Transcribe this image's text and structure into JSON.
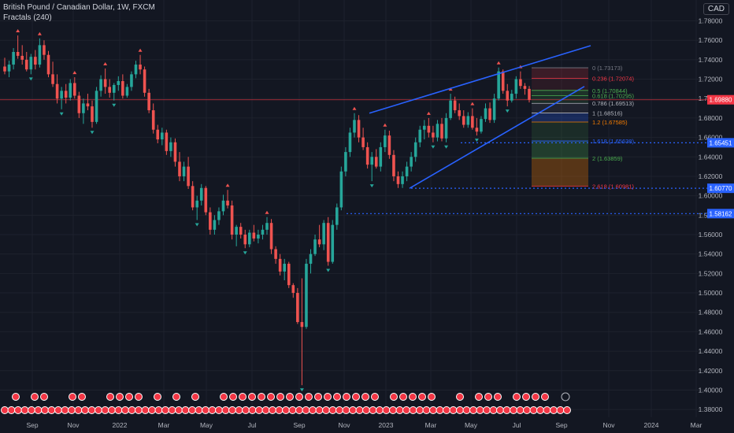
{
  "header": {
    "title": "British Pound / Canadian Dollar, 1W, FXCM",
    "indicator": "Fractals (240)",
    "currency": "CAD"
  },
  "colors": {
    "background": "#131722",
    "up": "#26a69a",
    "down": "#ef5350",
    "trendline": "#2962ff",
    "price_line": "#f23645",
    "level_line": "#2962ff"
  },
  "chart_data": {
    "type": "candlestick",
    "symbol": "GBPCAD",
    "interval": "1W",
    "yaxis": {
      "ticks": [
        "1.78000",
        "1.76000",
        "1.74000",
        "1.72000",
        "1.70000",
        "1.68000",
        "1.66000",
        "1.64000",
        "1.62000",
        "1.60000",
        "1.58000",
        "1.56000",
        "1.54000",
        "1.52000",
        "1.50000",
        "1.48000",
        "1.46000",
        "1.44000",
        "1.42000",
        "1.40000",
        "1.38000"
      ],
      "range": [
        1.372,
        1.795
      ]
    },
    "xaxis": {
      "ticks": [
        "Sep",
        "Nov",
        "2022",
        "Mar",
        "May",
        "Jul",
        "Sep",
        "Nov",
        "2023",
        "Mar",
        "May",
        "Jul",
        "Sep",
        "Nov",
        "2024",
        "Mar"
      ]
    },
    "price_labels": [
      {
        "label": "1.69880",
        "value": 1.6988,
        "color": "#f23645"
      },
      {
        "label": "1.65451",
        "value": 1.65451,
        "color": "#2962ff"
      },
      {
        "label": "1.60770",
        "value": 1.6077,
        "color": "#2962ff"
      },
      {
        "label": "1.58162",
        "value": 1.58162,
        "color": "#2962ff"
      }
    ],
    "fib_levels": [
      {
        "label": "0 (1.73173)",
        "value": 1.73173,
        "color": "#787b86"
      },
      {
        "label": "0.236 (1.72074)",
        "value": 1.72074,
        "color": "#f23645"
      },
      {
        "label": "0.5 (1.70844)",
        "value": 1.70844,
        "color": "#4caf50"
      },
      {
        "label": "0.618 (1.70295)",
        "value": 1.70295,
        "color": "#4caf50"
      },
      {
        "label": "0.786 (1.69513)",
        "value": 1.69513,
        "color": "#b2b5be"
      },
      {
        "label": "1 (1.68516)",
        "value": 1.68516,
        "color": "#b2b5be"
      },
      {
        "label": "1.2 (1.67585)",
        "value": 1.67585,
        "color": "#f57c00"
      },
      {
        "label": "1.618 (1.65638)",
        "value": 1.65638,
        "color": "#2962ff"
      },
      {
        "label": "2 (1.63859)",
        "value": 1.63859,
        "color": "#4caf50"
      },
      {
        "label": "2.618 (1.60981)",
        "value": 1.60981,
        "color": "#f23645"
      }
    ],
    "candles": [
      [
        1.733,
        1.742,
        1.725,
        1.728
      ],
      [
        1.728,
        1.739,
        1.722,
        1.735
      ],
      [
        1.735,
        1.752,
        1.73,
        1.748
      ],
      [
        1.748,
        1.765,
        1.741,
        1.744
      ],
      [
        1.744,
        1.755,
        1.735,
        1.74
      ],
      [
        1.74,
        1.748,
        1.728,
        1.73
      ],
      [
        1.73,
        1.746,
        1.725,
        1.743
      ],
      [
        1.743,
        1.75,
        1.73,
        1.735
      ],
      [
        1.735,
        1.762,
        1.732,
        1.755
      ],
      [
        1.755,
        1.76,
        1.74,
        1.745
      ],
      [
        1.745,
        1.749,
        1.722,
        1.725
      ],
      [
        1.725,
        1.738,
        1.712,
        1.715
      ],
      [
        1.715,
        1.725,
        1.695,
        1.7
      ],
      [
        1.7,
        1.712,
        1.689,
        1.708
      ],
      [
        1.708,
        1.715,
        1.695,
        1.701
      ],
      [
        1.701,
        1.72,
        1.698,
        1.716
      ],
      [
        1.716,
        1.722,
        1.7,
        1.703
      ],
      [
        1.703,
        1.707,
        1.68,
        1.685
      ],
      [
        1.685,
        1.7,
        1.674,
        1.695
      ],
      [
        1.695,
        1.705,
        1.688,
        1.692
      ],
      [
        1.692,
        1.698,
        1.67,
        1.676
      ],
      [
        1.676,
        1.712,
        1.674,
        1.708
      ],
      [
        1.708,
        1.724,
        1.702,
        1.72
      ],
      [
        1.72,
        1.731,
        1.705,
        1.712
      ],
      [
        1.712,
        1.72,
        1.701,
        1.706
      ],
      [
        1.706,
        1.716,
        1.698,
        1.714
      ],
      [
        1.714,
        1.723,
        1.708,
        1.718
      ],
      [
        1.718,
        1.725,
        1.7,
        1.703
      ],
      [
        1.703,
        1.715,
        1.701,
        1.712
      ],
      [
        1.712,
        1.728,
        1.708,
        1.725
      ],
      [
        1.725,
        1.739,
        1.721,
        1.735
      ],
      [
        1.735,
        1.745,
        1.725,
        1.73
      ],
      [
        1.73,
        1.733,
        1.702,
        1.706
      ],
      [
        1.706,
        1.71,
        1.685,
        1.688
      ],
      [
        1.688,
        1.695,
        1.664,
        1.668
      ],
      [
        1.668,
        1.673,
        1.654,
        1.658
      ],
      [
        1.658,
        1.67,
        1.652,
        1.665
      ],
      [
        1.665,
        1.668,
        1.642,
        1.646
      ],
      [
        1.646,
        1.66,
        1.64,
        1.655
      ],
      [
        1.655,
        1.659,
        1.63,
        1.635
      ],
      [
        1.635,
        1.645,
        1.615,
        1.62
      ],
      [
        1.62,
        1.635,
        1.615,
        1.63
      ],
      [
        1.63,
        1.64,
        1.607,
        1.61
      ],
      [
        1.61,
        1.615,
        1.585,
        1.588
      ],
      [
        1.588,
        1.6,
        1.575,
        1.595
      ],
      [
        1.595,
        1.612,
        1.59,
        1.608
      ],
      [
        1.608,
        1.61,
        1.58,
        1.583
      ],
      [
        1.583,
        1.588,
        1.56,
        1.565
      ],
      [
        1.565,
        1.58,
        1.56,
        1.575
      ],
      [
        1.575,
        1.588,
        1.57,
        1.584
      ],
      [
        1.584,
        1.601,
        1.58,
        1.595
      ],
      [
        1.595,
        1.606,
        1.587,
        1.59
      ],
      [
        1.59,
        1.595,
        1.555,
        1.56
      ],
      [
        1.56,
        1.57,
        1.548,
        1.568
      ],
      [
        1.568,
        1.572,
        1.556,
        1.56
      ],
      [
        1.56,
        1.565,
        1.546,
        1.55
      ],
      [
        1.55,
        1.565,
        1.547,
        1.562
      ],
      [
        1.562,
        1.57,
        1.553,
        1.556
      ],
      [
        1.556,
        1.565,
        1.551,
        1.56
      ],
      [
        1.56,
        1.57,
        1.555,
        1.565
      ],
      [
        1.565,
        1.578,
        1.56,
        1.572
      ],
      [
        1.572,
        1.576,
        1.54,
        1.545
      ],
      [
        1.545,
        1.548,
        1.53,
        1.535
      ],
      [
        1.535,
        1.54,
        1.518,
        1.522
      ],
      [
        1.522,
        1.535,
        1.513,
        1.53
      ],
      [
        1.53,
        1.532,
        1.505,
        1.508
      ],
      [
        1.508,
        1.51,
        1.495,
        1.5
      ],
      [
        1.5,
        1.505,
        1.468,
        1.47
      ],
      [
        1.47,
        1.515,
        1.405,
        1.465
      ],
      [
        1.465,
        1.535,
        1.463,
        1.53
      ],
      [
        1.53,
        1.545,
        1.52,
        1.54
      ],
      [
        1.54,
        1.56,
        1.538,
        1.555
      ],
      [
        1.555,
        1.57,
        1.547,
        1.55
      ],
      [
        1.55,
        1.575,
        1.544,
        1.572
      ],
      [
        1.572,
        1.578,
        1.528,
        1.532
      ],
      [
        1.532,
        1.575,
        1.53,
        1.57
      ],
      [
        1.57,
        1.592,
        1.565,
        1.588
      ],
      [
        1.588,
        1.63,
        1.585,
        1.625
      ],
      [
        1.625,
        1.65,
        1.62,
        1.645
      ],
      [
        1.645,
        1.67,
        1.64,
        1.665
      ],
      [
        1.665,
        1.685,
        1.66,
        1.678
      ],
      [
        1.678,
        1.683,
        1.655,
        1.66
      ],
      [
        1.66,
        1.67,
        1.647,
        1.65
      ],
      [
        1.65,
        1.655,
        1.628,
        1.632
      ],
      [
        1.632,
        1.645,
        1.615,
        1.64
      ],
      [
        1.64,
        1.648,
        1.628,
        1.63
      ],
      [
        1.63,
        1.655,
        1.625,
        1.65
      ],
      [
        1.65,
        1.668,
        1.645,
        1.662
      ],
      [
        1.662,
        1.667,
        1.638,
        1.642
      ],
      [
        1.642,
        1.647,
        1.615,
        1.62
      ],
      [
        1.62,
        1.625,
        1.608,
        1.612
      ],
      [
        1.612,
        1.625,
        1.608,
        1.62
      ],
      [
        1.62,
        1.635,
        1.615,
        1.63
      ],
      [
        1.63,
        1.645,
        1.625,
        1.64
      ],
      [
        1.64,
        1.66,
        1.635,
        1.655
      ],
      [
        1.655,
        1.672,
        1.65,
        1.668
      ],
      [
        1.668,
        1.678,
        1.658,
        1.672
      ],
      [
        1.672,
        1.68,
        1.66,
        1.665
      ],
      [
        1.665,
        1.672,
        1.655,
        1.66
      ],
      [
        1.66,
        1.678,
        1.656,
        1.674
      ],
      [
        1.674,
        1.68,
        1.656,
        1.659
      ],
      [
        1.659,
        1.685,
        1.655,
        1.68
      ],
      [
        1.68,
        1.705,
        1.678,
        1.698
      ],
      [
        1.698,
        1.702,
        1.685,
        1.688
      ],
      [
        1.688,
        1.695,
        1.678,
        1.682
      ],
      [
        1.682,
        1.688,
        1.67,
        1.673
      ],
      [
        1.673,
        1.686,
        1.67,
        1.682
      ],
      [
        1.682,
        1.69,
        1.668,
        1.67
      ],
      [
        1.67,
        1.68,
        1.662,
        1.666
      ],
      [
        1.666,
        1.682,
        1.664,
        1.679
      ],
      [
        1.679,
        1.695,
        1.676,
        1.69
      ],
      [
        1.69,
        1.696,
        1.675,
        1.678
      ],
      [
        1.678,
        1.705,
        1.675,
        1.7
      ],
      [
        1.7,
        1.732,
        1.698,
        1.728
      ],
      [
        1.728,
        1.73,
        1.705,
        1.708
      ],
      [
        1.708,
        1.715,
        1.692,
        1.698
      ],
      [
        1.698,
        1.709,
        1.696,
        1.705
      ],
      [
        1.705,
        1.723,
        1.7,
        1.72
      ],
      [
        1.72,
        1.728,
        1.71,
        1.713
      ],
      [
        1.713,
        1.716,
        1.704,
        1.71
      ],
      [
        1.71,
        1.713,
        1.696,
        1.6988
      ]
    ]
  },
  "footer": {
    "events_row": "economic-events"
  }
}
